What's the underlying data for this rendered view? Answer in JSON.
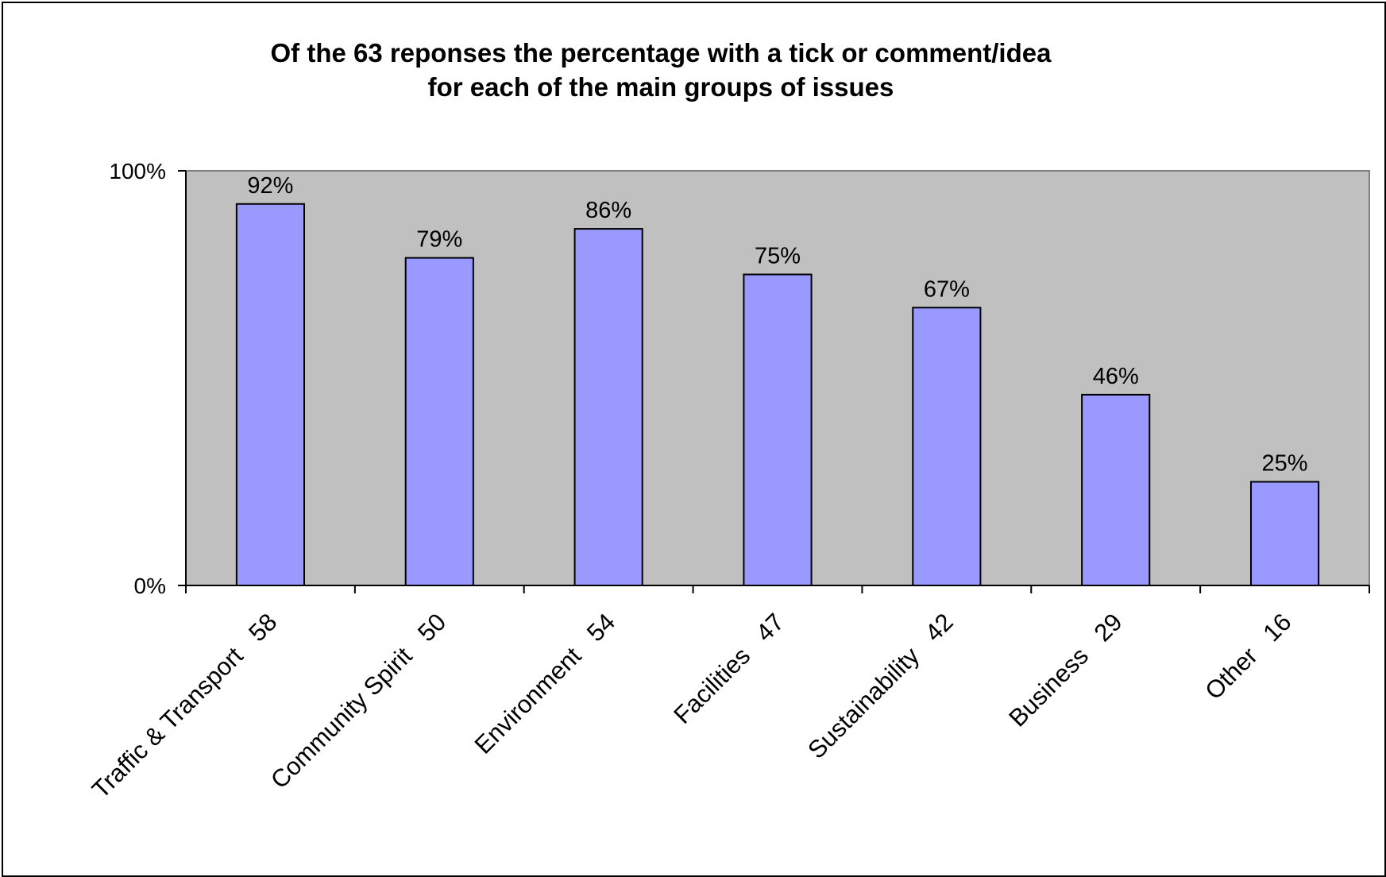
{
  "chart_data": {
    "type": "bar",
    "title": "Of the 63 reponses the percentage with a tick or comment/idea",
    "subtitle": "for each of the main groups of issues",
    "xlabel": "",
    "ylabel": "",
    "categories": [
      "Traffic & Transport   58",
      "Community Spirit   50",
      "Environment   54",
      "Facilities   47",
      "Sustainability   42",
      "Business   29",
      "Other   16"
    ],
    "values": [
      92,
      79,
      86,
      75,
      67,
      46,
      25
    ],
    "data_labels": [
      "92%",
      "79%",
      "86%",
      "75%",
      "67%",
      "46%",
      "25%"
    ],
    "ylim": [
      0,
      100
    ],
    "y_tick_labels": [
      "0%",
      "100%"
    ],
    "y_tick_values": [
      0,
      100
    ],
    "grid": false,
    "legend": "none",
    "colors": {
      "bar_fill": "#9999ff",
      "bar_stroke": "#000000",
      "plot_background": "#c0c0c0",
      "axis": "#000000"
    }
  }
}
